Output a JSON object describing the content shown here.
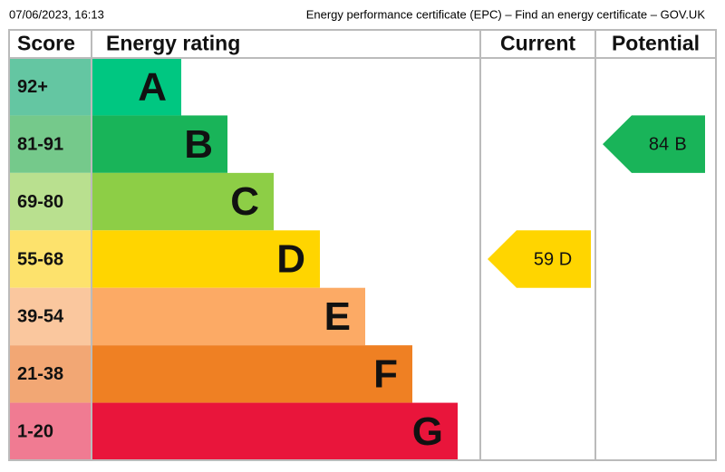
{
  "header": {
    "timestamp": "07/06/2023, 16:13",
    "page_title": "Energy performance certificate (EPC) – Find an energy certificate – GOV.UK"
  },
  "table": {
    "columns": [
      "Score",
      "Energy rating",
      "Current",
      "Potential"
    ],
    "bands": [
      {
        "score": "92+",
        "letter": "A",
        "color": "#00c781",
        "score_color": "#64c6a2"
      },
      {
        "score": "81-91",
        "letter": "B",
        "color": "#19b459",
        "score_color": "#75c98b"
      },
      {
        "score": "69-80",
        "letter": "C",
        "color": "#8dce46",
        "score_color": "#b9e08f"
      },
      {
        "score": "55-68",
        "letter": "D",
        "color": "#ffd500",
        "score_color": "#fde26c"
      },
      {
        "score": "39-54",
        "letter": "E",
        "color": "#fcaa65",
        "score_color": "#fac79e"
      },
      {
        "score": "21-38",
        "letter": "F",
        "color": "#ef8023",
        "score_color": "#f2a774"
      },
      {
        "score": "1-20",
        "letter": "G",
        "color": "#e9153b",
        "score_color": "#f07b92"
      }
    ],
    "current": {
      "value": 59,
      "letter": "D"
    },
    "potential": {
      "value": 84,
      "letter": "B"
    }
  }
}
